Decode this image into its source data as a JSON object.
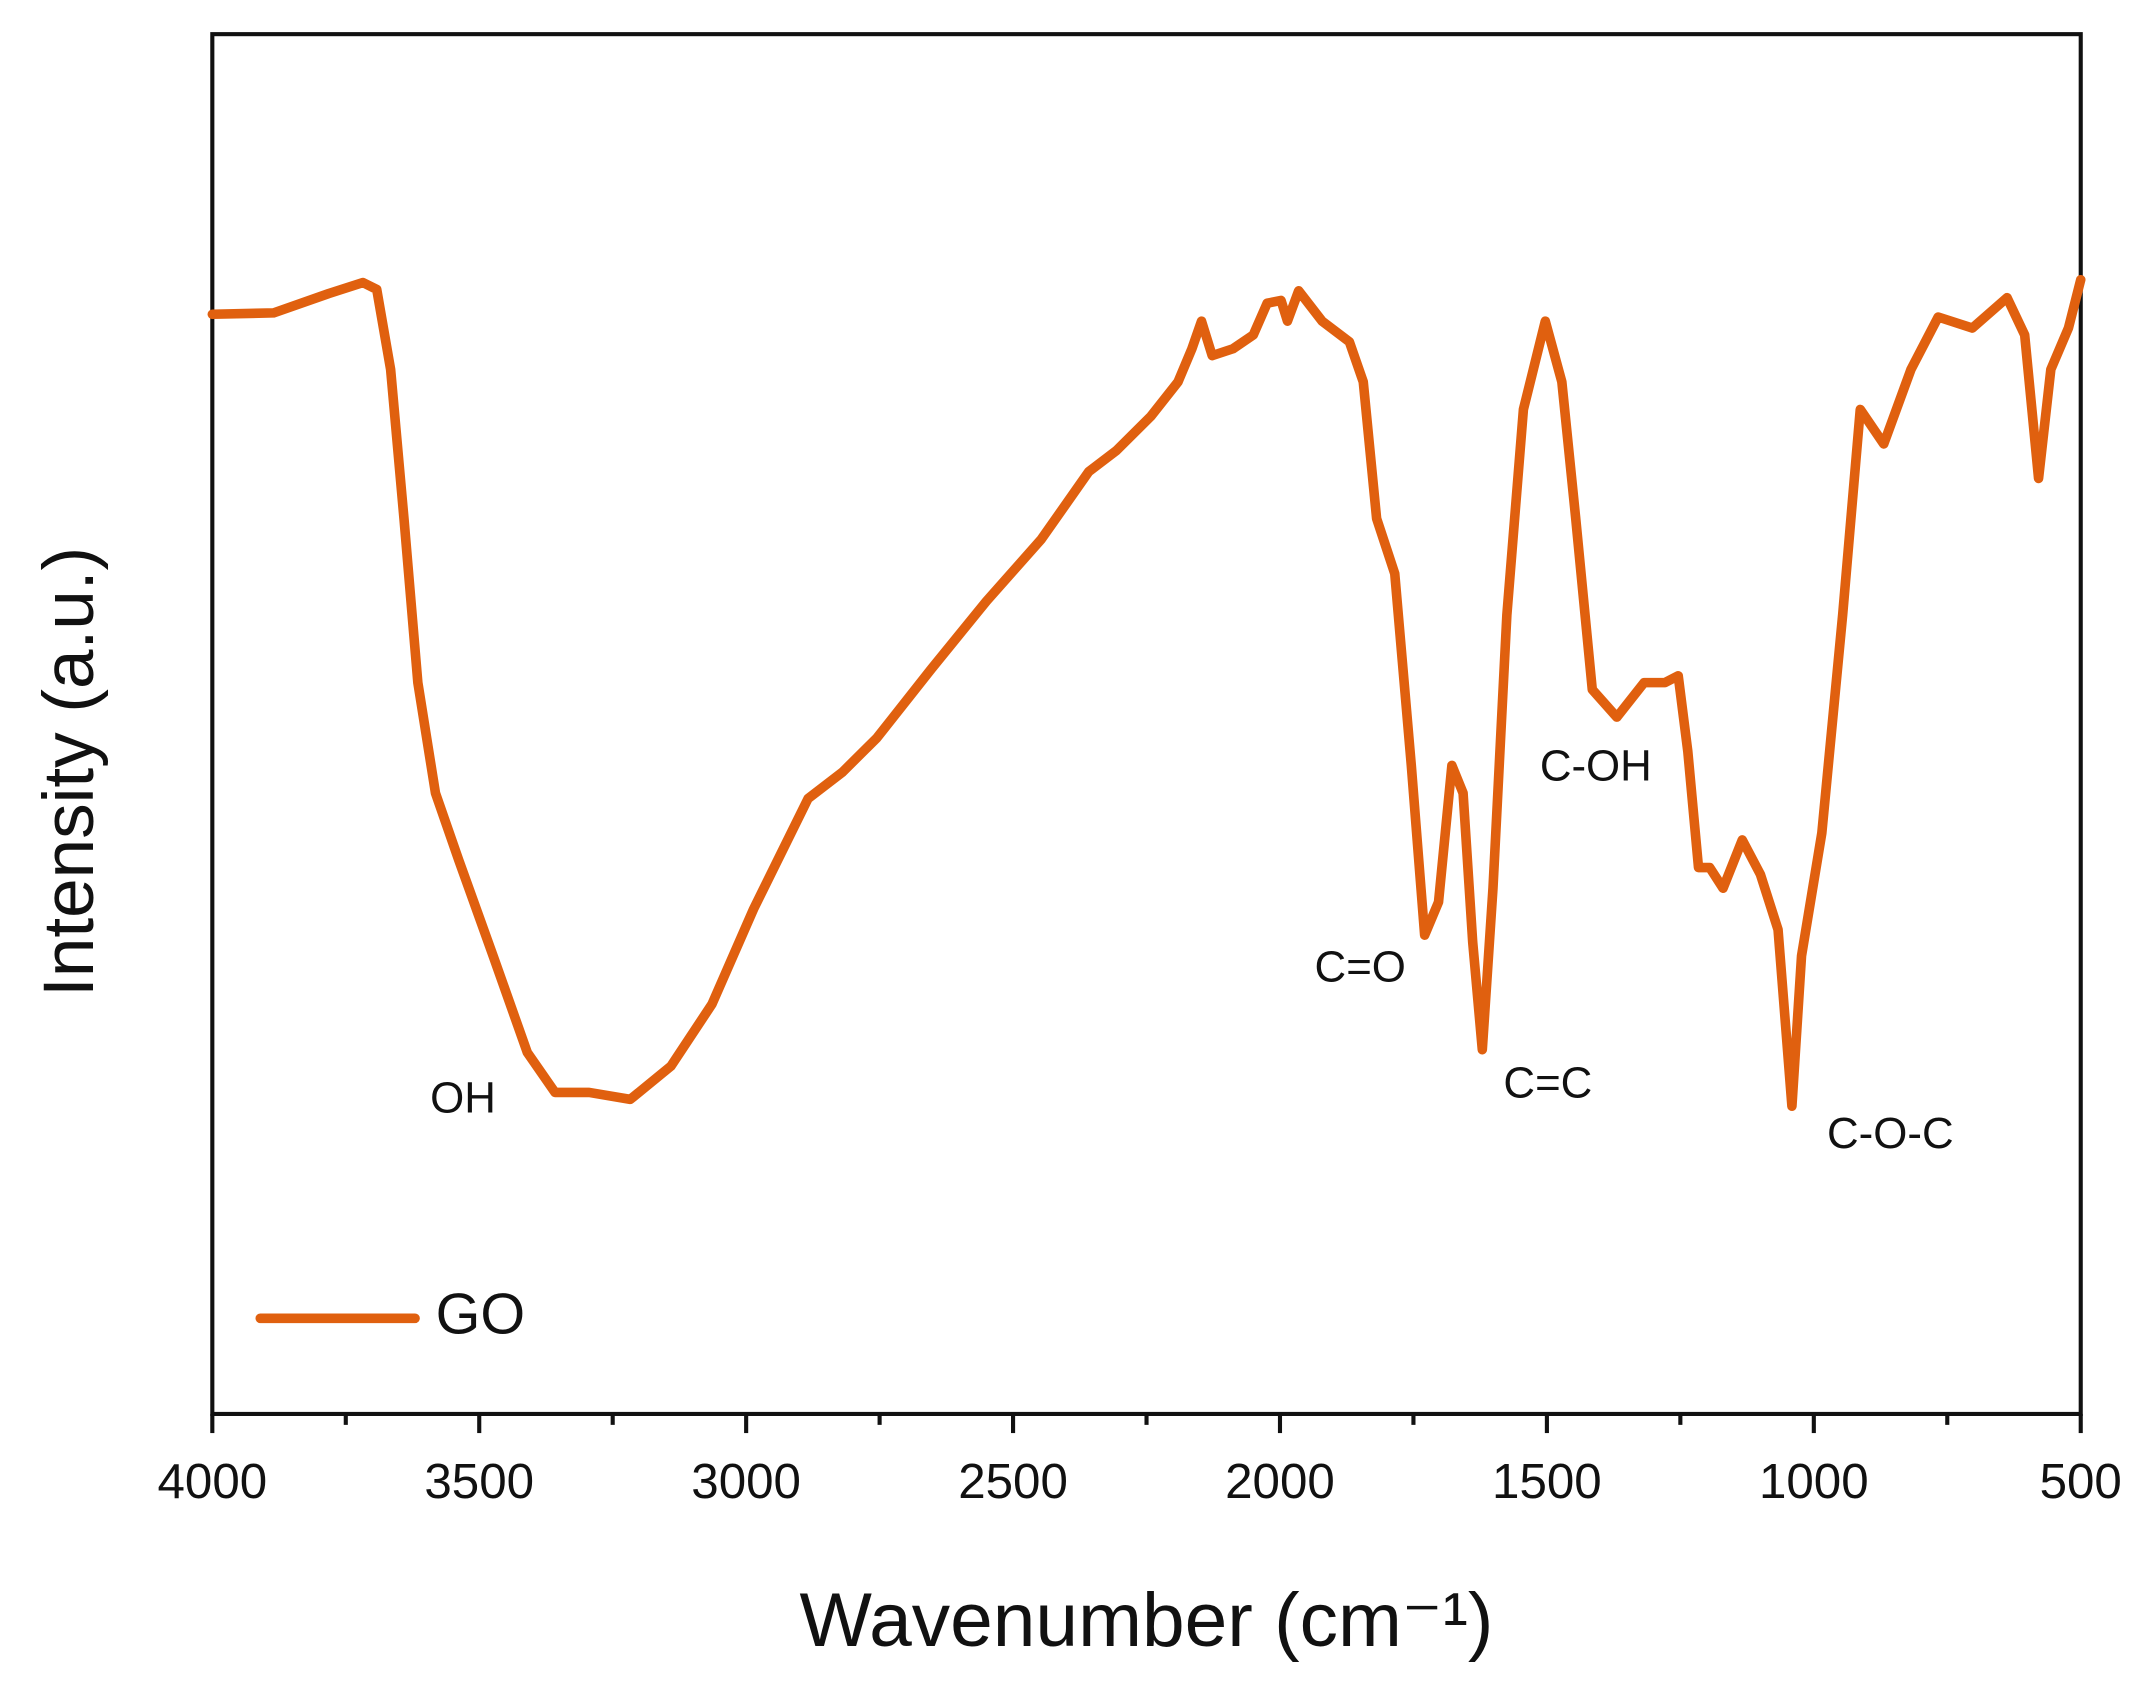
{
  "chart_data": {
    "type": "line",
    "xlabel": "Wavenumber (cm⁻¹)",
    "ylabel": "Intensity (a.u.)",
    "x": [
      4000,
      3885,
      3782,
      3718,
      3692,
      3666,
      3641,
      3615,
      3582,
      3538,
      3474,
      3410,
      3358,
      3294,
      3217,
      3141,
      3064,
      2986,
      2935,
      2884,
      2820,
      2755,
      2653,
      2550,
      2447,
      2358,
      2307,
      2242,
      2191,
      2165,
      2147,
      2127,
      2088,
      2050,
      2024,
      1998,
      1986,
      1965,
      1921,
      1870,
      1844,
      1819,
      1785,
      1754,
      1729,
      1703,
      1678,
      1657,
      1639,
      1621,
      1601,
      1575,
      1544,
      1503,
      1472,
      1446,
      1415,
      1369,
      1318,
      1279,
      1254,
      1236,
      1216,
      1195,
      1170,
      1134,
      1100,
      1067,
      1054,
      1041,
      1023,
      985,
      946,
      913,
      869,
      818,
      767,
      703,
      638,
      605,
      579,
      556,
      523,
      500
    ],
    "series": [
      {
        "name": "GO",
        "color": "#e0600f",
        "values": [
          79.7,
          79.8,
          81.2,
          82.0,
          81.5,
          75.7,
          64.9,
          53.0,
          45.0,
          40.1,
          33.2,
          26.2,
          23.3,
          23.3,
          22.8,
          25.2,
          29.7,
          36.6,
          40.6,
          44.6,
          46.5,
          49.0,
          54.0,
          58.9,
          63.4,
          68.3,
          69.8,
          72.3,
          74.8,
          77.2,
          79.2,
          76.7,
          77.2,
          78.2,
          80.5,
          80.7,
          79.2,
          81.4,
          79.2,
          77.7,
          74.8,
          64.9,
          60.9,
          47.0,
          34.7,
          37.1,
          47.0,
          45.0,
          34.2,
          26.4,
          38.1,
          57.9,
          72.8,
          79.2,
          74.8,
          64.9,
          52.5,
          50.5,
          53.0,
          53.0,
          53.5,
          48.0,
          39.6,
          39.6,
          38.1,
          41.6,
          39.1,
          35.1,
          28.7,
          22.3,
          33.2,
          42.1,
          57.9,
          72.8,
          70.3,
          75.7,
          79.5,
          78.7,
          80.9,
          78.2,
          67.8,
          75.7,
          78.7,
          82.2
        ]
      }
    ],
    "xlim": [
      4000,
      500
    ],
    "xticks": [
      4000,
      3500,
      3000,
      2500,
      2000,
      1500,
      1000,
      500
    ],
    "xminorticks": [
      3750,
      3250,
      2750,
      2250,
      1750,
      1250,
      750
    ],
    "ylim": [
      0,
      100
    ],
    "annotations": [
      "OH",
      "C=O",
      "C=C",
      "C-OH",
      "C-O-C"
    ],
    "legend": "lower left"
  }
}
